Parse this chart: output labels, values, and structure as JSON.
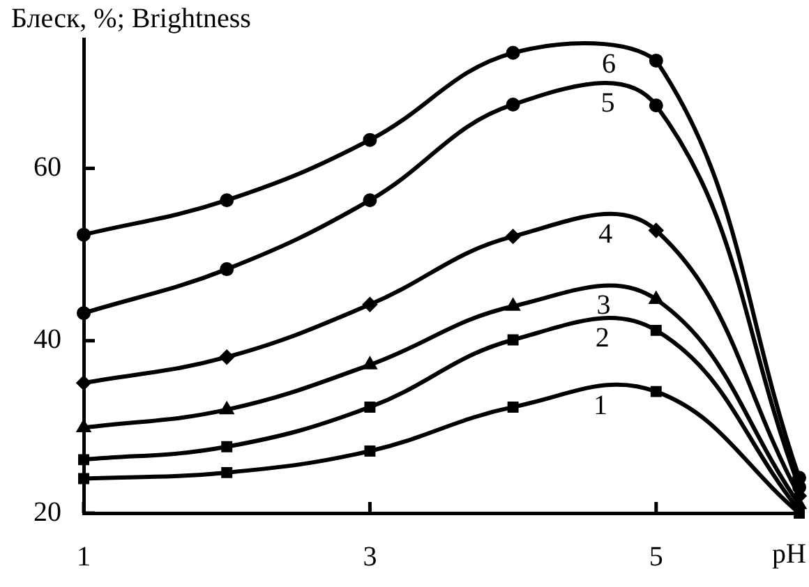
{
  "chart_data": {
    "type": "line",
    "ylabel": "Блеск, %; Brightness",
    "xlabel": "pH",
    "x": [
      1,
      2,
      3,
      4,
      5,
      6
    ],
    "series": [
      {
        "name": "1",
        "color": "#000000",
        "marker": "square",
        "values": [
          24.0,
          24.7,
          27.2,
          32.3,
          34.1,
          20
        ]
      },
      {
        "name": "2",
        "color": "#000000",
        "marker": "square",
        "values": [
          26.2,
          27.7,
          32.3,
          40.1,
          41.2,
          20.3
        ]
      },
      {
        "name": "3",
        "color": "#000000",
        "marker": "triangle",
        "values": [
          29.9,
          32.0,
          37.2,
          44.0,
          44.8,
          21
        ]
      },
      {
        "name": "4",
        "color": "#000000",
        "marker": "diamond",
        "values": [
          35.1,
          38.1,
          44.2,
          52.1,
          52.8,
          22
        ]
      },
      {
        "name": "5",
        "color": "#000000",
        "marker": "circle",
        "values": [
          43.2,
          48.3,
          56.3,
          67.4,
          67.3,
          23
        ]
      },
      {
        "name": "6",
        "color": "#000000",
        "marker": "circle",
        "values": [
          52.3,
          56.3,
          63.3,
          73.4,
          72.5,
          24.1
        ]
      }
    ],
    "xlim": [
      1,
      6
    ],
    "xticks": [
      1,
      3,
      5
    ],
    "ylim": [
      20,
      75
    ],
    "yticks": [
      20,
      40,
      60
    ],
    "grid": false,
    "line_style": "solid"
  }
}
